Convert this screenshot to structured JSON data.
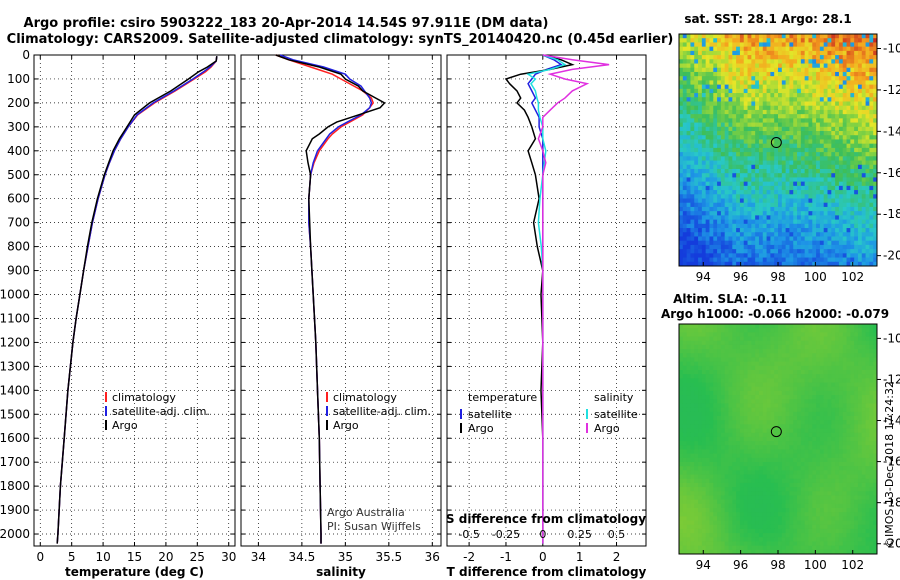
{
  "title_line1": "Argo profile: csiro 5903222_183 20-Apr-2014 14.54S 97.911E (DM data)",
  "title_line2": "Climatology: CARS2009. Satellite-adjusted climatology: synTS_20140420.nc (0.45d earlier)",
  "depth_ticks": [
    0,
    100,
    200,
    300,
    400,
    500,
    600,
    700,
    800,
    900,
    1000,
    1100,
    1200,
    1300,
    1400,
    1500,
    1600,
    1700,
    1800,
    1900,
    2000
  ],
  "colors": {
    "climatology": "#ff2020",
    "satellite": "#2020e0",
    "argo": "#000000",
    "sal_satellite": "#20e0e0",
    "sal_argo": "#e030e0",
    "marker": "#000000"
  },
  "chart_data": [
    {
      "type": "line",
      "name": "temperature",
      "xlabel": "temperature (deg C)",
      "ylabel": "depth",
      "xlim": [
        -1,
        31
      ],
      "ylim": [
        2050,
        0
      ],
      "xticks": [
        0,
        5,
        10,
        15,
        20,
        25,
        30
      ],
      "legend": [
        "climatology",
        "satellite-adj. clim.",
        "Argo"
      ],
      "legend_position": "lower-middle",
      "depth": [
        5,
        25,
        50,
        70,
        100,
        150,
        200,
        250,
        300,
        350,
        400,
        450,
        500,
        600,
        700,
        800,
        900,
        1000,
        1100,
        1200,
        1400,
        1600,
        1800,
        2000,
        2040
      ],
      "series": [
        {
          "name": "climatology",
          "values": [
            28.1,
            28.0,
            27.2,
            26.3,
            24.5,
            21.5,
            18.2,
            15.5,
            14.0,
            12.8,
            11.8,
            11.0,
            10.3,
            9.2,
            8.3,
            7.6,
            6.9,
            6.3,
            5.7,
            5.2,
            4.4,
            3.8,
            3.2,
            2.8,
            2.7
          ]
        },
        {
          "name": "satellite-adj. clim.",
          "values": [
            28.1,
            28.0,
            27.0,
            26.0,
            24.3,
            21.3,
            18.0,
            15.4,
            14.0,
            12.8,
            11.8,
            11.0,
            10.3,
            9.2,
            8.3,
            7.6,
            6.9,
            6.3,
            5.7,
            5.2,
            4.4,
            3.8,
            3.2,
            2.8,
            2.7
          ]
        },
        {
          "name": "Argo",
          "values": [
            28.1,
            28.0,
            26.6,
            25.2,
            23.6,
            20.8,
            17.4,
            15.0,
            13.8,
            12.6,
            11.6,
            10.9,
            10.2,
            9.1,
            8.2,
            7.5,
            6.9,
            6.3,
            5.7,
            5.2,
            4.4,
            3.8,
            3.2,
            2.8,
            2.7
          ]
        }
      ]
    },
    {
      "type": "line",
      "name": "salinity",
      "xlabel": "salinity",
      "xlim": [
        33.8,
        36.1
      ],
      "ylim": [
        2050,
        0
      ],
      "xticks": [
        34,
        34.5,
        35,
        35.5,
        36
      ],
      "xticklabels": [
        "34",
        "34.5",
        "35",
        "35.5",
        "36"
      ],
      "legend": [
        "climatology",
        "satellite-adj. clim.",
        "Argo"
      ],
      "legend_position": "lower-right",
      "annotations": [
        "Argo Australia",
        "PI: Susan Wijffels"
      ],
      "depth": [
        0,
        20,
        50,
        80,
        100,
        130,
        150,
        180,
        200,
        220,
        250,
        280,
        300,
        330,
        350,
        400,
        450,
        500,
        600,
        700,
        800,
        1000,
        1200,
        1400,
        1600,
        1800,
        2000,
        2040
      ],
      "series": [
        {
          "name": "climatology",
          "values": [
            34.2,
            34.35,
            34.6,
            34.85,
            34.95,
            35.1,
            35.2,
            35.3,
            35.32,
            35.28,
            35.2,
            35.05,
            34.95,
            34.85,
            34.8,
            34.7,
            34.64,
            34.6,
            34.58,
            34.58,
            34.6,
            34.63,
            34.66,
            34.68,
            34.7,
            34.71,
            34.72,
            34.72
          ]
        },
        {
          "name": "satellite-adj. clim.",
          "values": [
            34.25,
            34.4,
            34.75,
            35.0,
            35.05,
            35.18,
            35.22,
            35.28,
            35.3,
            35.28,
            35.18,
            35.02,
            34.92,
            34.82,
            34.78,
            34.68,
            34.63,
            34.6,
            34.58,
            34.58,
            34.6,
            34.63,
            34.66,
            34.68,
            34.7,
            34.71,
            34.72,
            34.72
          ]
        },
        {
          "name": "Argo",
          "values": [
            34.2,
            34.35,
            34.7,
            34.95,
            35.0,
            35.15,
            35.2,
            35.35,
            35.45,
            35.4,
            35.15,
            34.9,
            34.8,
            34.7,
            34.62,
            34.55,
            34.57,
            34.6,
            34.58,
            34.59,
            34.6,
            34.63,
            34.66,
            34.68,
            34.7,
            34.71,
            34.72,
            34.72
          ]
        }
      ]
    },
    {
      "type": "line",
      "name": "differences",
      "xlabel": "T difference from climatology",
      "xlabel_top": "S difference from climatology",
      "xlim": [
        -2.6,
        2.8
      ],
      "ylim": [
        2050,
        0
      ],
      "xticks": [
        -2,
        -1,
        0,
        1,
        2
      ],
      "sticks_s": [
        -0.5,
        -0.25,
        0,
        0.25,
        0.5
      ],
      "sticklabels": [
        "-0.5",
        "-0.25",
        "0",
        "0.25",
        "0.5"
      ],
      "legend_temperature": {
        "title": "temperature",
        "items": [
          "satellite",
          "Argo"
        ]
      },
      "legend_salinity": {
        "title": "salinity",
        "items": [
          "satellite",
          "Argo"
        ]
      },
      "depth": [
        0,
        20,
        40,
        60,
        80,
        100,
        120,
        150,
        180,
        200,
        230,
        260,
        300,
        350,
        400,
        450,
        500,
        600,
        700,
        800,
        900,
        1000,
        1200,
        1400,
        1600,
        1800,
        2000,
        2040
      ],
      "series": [
        {
          "name": "T satellite",
          "values": [
            0,
            0.3,
            0.5,
            0.1,
            -0.2,
            -0.3,
            -0.4,
            -0.3,
            -0.2,
            -0.3,
            -0.2,
            -0.1,
            -0.1,
            0,
            0,
            0,
            0,
            0,
            0,
            0,
            0,
            0,
            0,
            0,
            0,
            0,
            0,
            0
          ]
        },
        {
          "name": "T Argo",
          "values": [
            0,
            0.5,
            0.8,
            0.2,
            -0.6,
            -1.0,
            -0.9,
            -0.7,
            -0.6,
            -0.7,
            -0.5,
            -0.4,
            -0.3,
            -0.2,
            -0.4,
            -0.3,
            -0.2,
            -0.1,
            -0.25,
            -0.15,
            0,
            -0.05,
            0,
            -0.05,
            0,
            0,
            0,
            0
          ]
        },
        {
          "name": "S satellite",
          "values": [
            0,
            0.1,
            0.15,
            0.05,
            -0.1,
            -0.05,
            -0.08,
            -0.05,
            -0.04,
            -0.03,
            -0.03,
            -0.02,
            0,
            0,
            0.02,
            0.01,
            0,
            -0.02,
            -0.03,
            -0.01,
            0,
            0,
            0,
            0,
            0,
            0,
            0,
            0
          ]
        },
        {
          "name": "S Argo",
          "values": [
            0,
            0.2,
            0.45,
            0.2,
            0.05,
            0.15,
            0.3,
            0.2,
            0.15,
            0.1,
            0.05,
            0,
            0,
            -0.03,
            0,
            0.02,
            0,
            0,
            0,
            0,
            0,
            0,
            0,
            0,
            0,
            0,
            0,
            0
          ]
        }
      ]
    },
    {
      "type": "heatmap",
      "name": "sst_map",
      "title": "sat. SST: 28.1  Argo: 28.1",
      "xlim": [
        92.7,
        103.3
      ],
      "ylim": [
        -20.5,
        -9.3
      ],
      "xticks": [
        94,
        96,
        98,
        100,
        102
      ],
      "yticks": [
        -10,
        -12,
        -14,
        -16,
        -18,
        -20
      ],
      "argo_position": {
        "lon": 97.911,
        "lat": -14.54
      }
    },
    {
      "type": "heatmap",
      "name": "sla_map",
      "title_line1": "Altim. SLA: -0.11",
      "title_line2": "Argo h1000: -0.066  h2000: -0.079",
      "xlim": [
        92.7,
        103.3
      ],
      "ylim": [
        -20.5,
        -9.3
      ],
      "xticks": [
        94,
        96,
        98,
        100,
        102
      ],
      "yticks": [
        -10,
        -12,
        -14,
        -16,
        -18,
        -20
      ],
      "argo_position": {
        "lon": 97.911,
        "lat": -14.54
      }
    }
  ],
  "footer_stamp": "©IMOS 13-Dec-2018 17:24:32"
}
